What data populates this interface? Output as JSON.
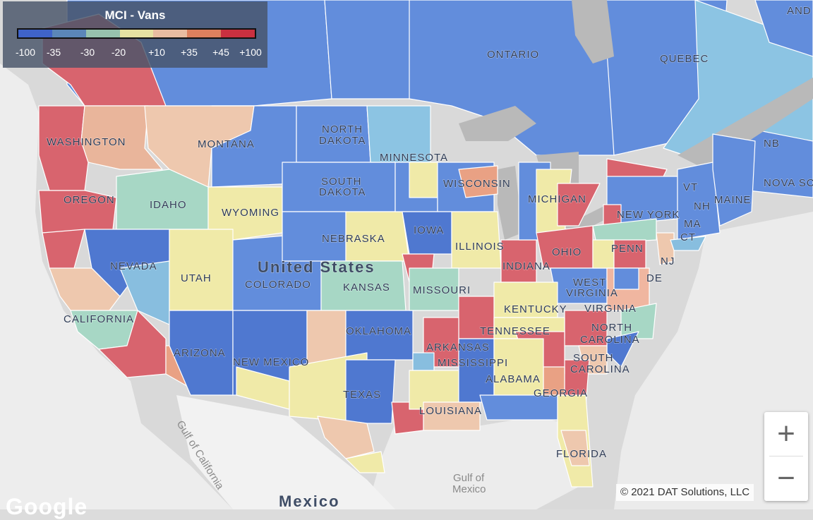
{
  "legend": {
    "title": "MCI - Vans",
    "colors": [
      "#3f63c9",
      "#5b86b8",
      "#97c2ad",
      "#e6e1a2",
      "#e8bca1",
      "#dc805e",
      "#c93040"
    ],
    "ticks": [
      "-100",
      "-35",
      "-30",
      "-20",
      "+10",
      "+35",
      "+45",
      "+100"
    ]
  },
  "map_labels": {
    "ontario": "ONTARIO",
    "quebec": "QUEBEC",
    "nb": "NB",
    "nova_scotia": "NOVA SC",
    "washington": "WASHINGTON",
    "oregon": "OREGON",
    "idaho": "IDAHO",
    "montana": "MONTANA",
    "wyoming": "WYOMING",
    "north_dakota_1": "NORTH",
    "north_dakota_2": "DAKOTA",
    "south_dakota_1": "SOUTH",
    "south_dakota_2": "DAKOTA",
    "minnesota": "MINNESOTA",
    "wisconsin": "WISCONSIN",
    "michigan": "MICHIGAN",
    "nebraska": "NEBRASKA",
    "iowa": "IOWA",
    "illinois": "ILLINOIS",
    "indiana": "INDIANA",
    "ohio": "OHIO",
    "penn": "PENN",
    "new_york": "NEW YORK",
    "maine": "MAINE",
    "vt": "VT",
    "nh": "NH",
    "ma": "MA",
    "ct": "CT",
    "nj": "NJ",
    "de": "DE",
    "nevada": "NEVADA",
    "utah": "UTAH",
    "colorado": "COLORADO",
    "kansas": "KANSAS",
    "missouri": "MISSOURI",
    "kentucky": "KENTUCKY",
    "west_virginia_1": "WEST",
    "west_virginia_2": "VIRGINIA",
    "virginia": "VIRGINIA",
    "california": "CALIFORNIA",
    "arizona": "ARIZONA",
    "new_mexico": "NEW MEXICO",
    "oklahoma": "OKLAHOMA",
    "arkansas": "ARKANSAS",
    "tennessee": "TENNESSEE",
    "north_carolina_1": "NORTH",
    "north_carolina_2": "CAROLINA",
    "south_carolina_1": "SOUTH",
    "south_carolina_2": "CAROLINA",
    "mississippi": "MISSISSIPPI",
    "alabama": "ALABAMA",
    "georgia": "GEORGIA",
    "texas": "TEXAS",
    "louisiana": "LOUISIANA",
    "florida": "FLORIDA",
    "united_states": "United States",
    "mexico": "Mexico",
    "gulf_of_mexico_1": "Gulf of",
    "gulf_of_mexico_2": "Mexico",
    "gulf_of_california": "Gulf of California",
    "nfld": "AND"
  },
  "zoom": {
    "in": "+",
    "out": "−"
  },
  "attribution": "© 2021 DAT Solutions, LLC",
  "google_logo": "Google"
}
